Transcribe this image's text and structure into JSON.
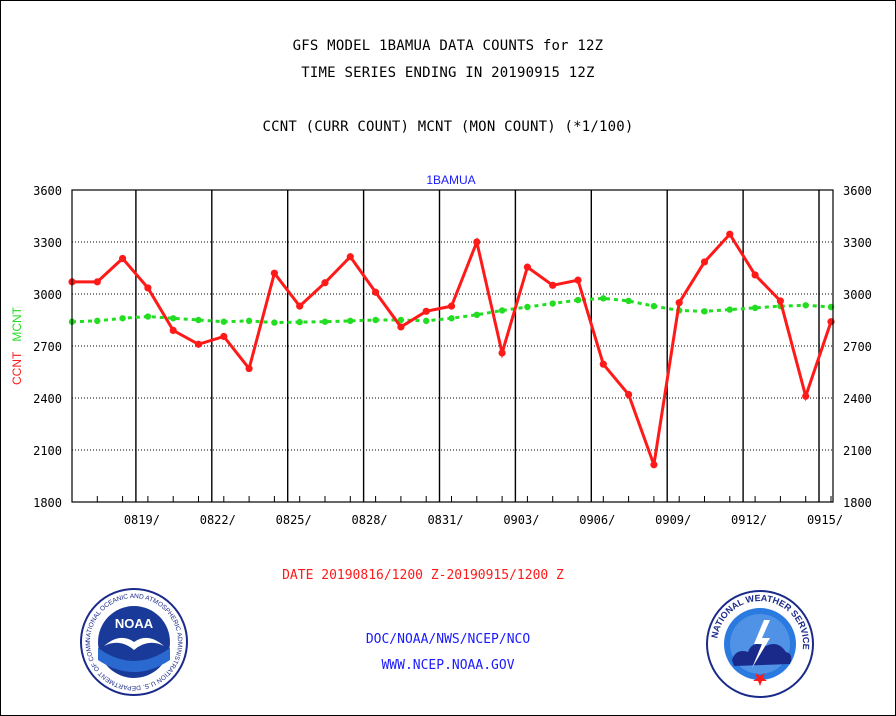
{
  "header": {
    "line1": "GFS MODEL 1BAMUA DATA COUNTS for 12Z",
    "line2": "TIME SERIES ENDING IN 20190915 12Z",
    "line3": "CCNT (CURR COUNT) MCNT (MON COUNT) (*1/100)"
  },
  "chart_data": {
    "type": "line",
    "title": "1BAMUA",
    "ylabel": "CCNT  MCNT",
    "ylabel_parts": [
      "CCNT",
      "MCNT"
    ],
    "xlabel": "DATE 20190816/1200 Z-20190915/1200 Z",
    "ylim": [
      1800,
      3600
    ],
    "yticks": [
      1800,
      2100,
      2400,
      2700,
      3000,
      3300,
      3600
    ],
    "ytick_labels": [
      "1800",
      "2100",
      "2400",
      "2700",
      "3000",
      "3300",
      "3600"
    ],
    "x_start_day": 0,
    "x_end_day": 30,
    "xticks": [
      {
        "day": 3,
        "label": "0819/"
      },
      {
        "day": 6,
        "label": "0822/"
      },
      {
        "day": 9,
        "label": "0825/"
      },
      {
        "day": 12,
        "label": "0828/"
      },
      {
        "day": 15,
        "label": "0831/"
      },
      {
        "day": 18,
        "label": "0903/"
      },
      {
        "day": 21,
        "label": "0906/"
      },
      {
        "day": 24,
        "label": "0909/"
      },
      {
        "day": 27,
        "label": "0912/"
      },
      {
        "day": 30,
        "label": "0915/"
      }
    ],
    "grid": true,
    "series": [
      {
        "name": "CCNT",
        "color": "#ff1a1a",
        "values": [
          3070,
          3070,
          3205,
          3035,
          2790,
          2710,
          2755,
          2570,
          3120,
          2930,
          3065,
          3215,
          3010,
          2810,
          2900,
          2930,
          3300,
          2660,
          3155,
          3050,
          3080,
          2595,
          2420,
          2015,
          2950,
          3185,
          3345,
          3110,
          2960,
          2410,
          2840
        ]
      },
      {
        "name": "MCNT",
        "color": "#22dd22",
        "values": [
          2840,
          2845,
          2860,
          2870,
          2860,
          2850,
          2840,
          2845,
          2835,
          2838,
          2840,
          2845,
          2850,
          2850,
          2845,
          2860,
          2880,
          2905,
          2925,
          2945,
          2965,
          2975,
          2960,
          2930,
          2905,
          2900,
          2910,
          2920,
          2930,
          2935,
          2925
        ]
      }
    ]
  },
  "footer": {
    "agency": "DOC/NOAA/NWS/NCEP/NCO",
    "url": "WWW.NCEP.NOAA.GOV",
    "noaa_logo_text": "NOAA",
    "noaa_ring_text": "NATIONAL OCEANIC AND ATMOSPHERIC ADMINISTRATION U.S. DEPARTMENT OF COMMERCE",
    "nws_ring_text": "NATIONAL WEATHER SERVICE"
  }
}
